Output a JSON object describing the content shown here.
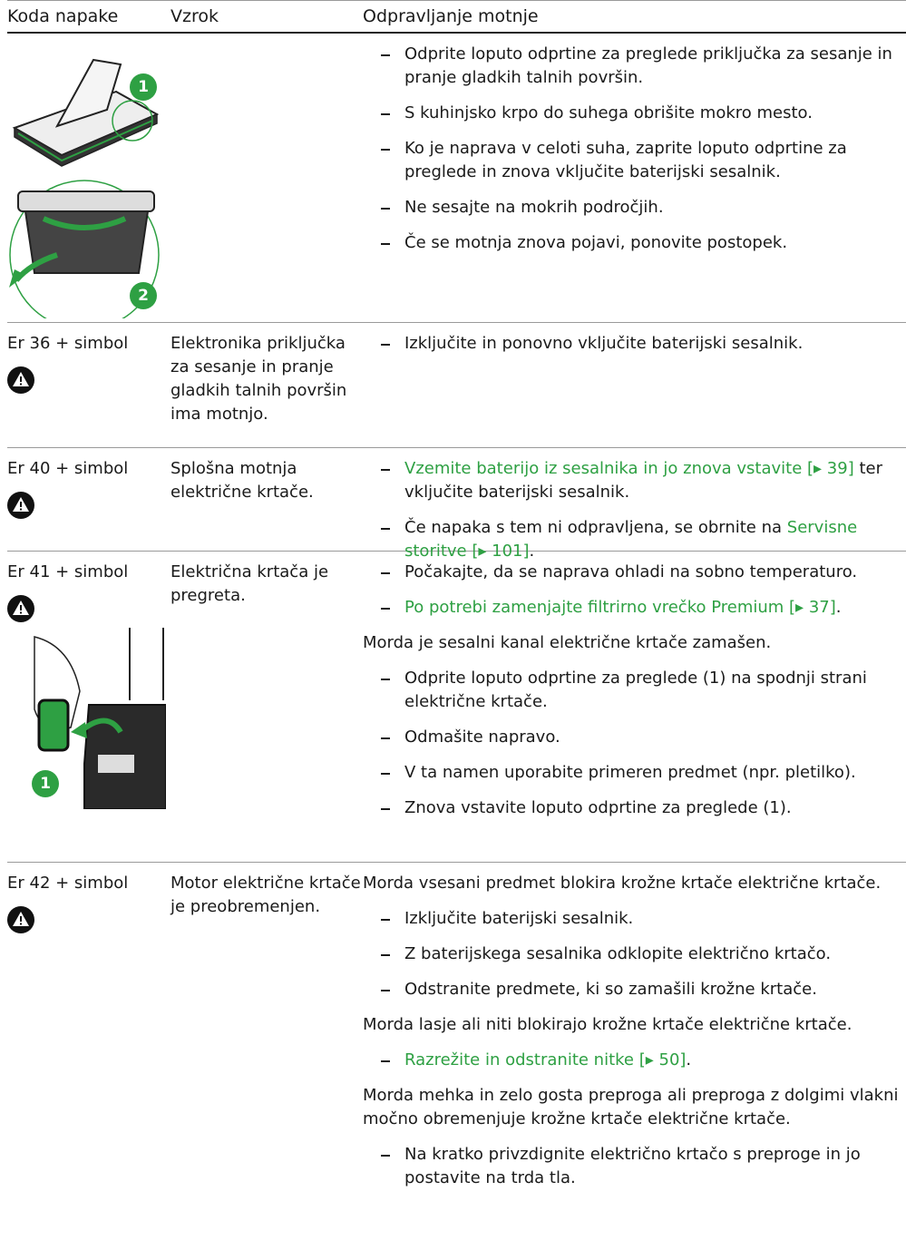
{
  "table": {
    "header": [
      "Koda napake",
      "Vzrok",
      "Odpravljanje motnje"
    ],
    "rows": [
      {
        "image_callouts": [
          "1",
          "2"
        ],
        "items": [
          {
            "kind": "bullet",
            "parts": [
              {
                "text": "Odprite loputo odprtine za preglede priključka za sesanje in pranje gladkih talnih površin."
              }
            ]
          },
          {
            "kind": "bullet",
            "parts": [
              {
                "text": "S kuhinjsko krpo do suhega obrišite mokro mesto."
              }
            ]
          },
          {
            "kind": "bullet",
            "parts": [
              {
                "text": "Ko je naprava v celoti suha, zaprite loputo odprtine za preglede in znova vključite baterijski sesalnik."
              }
            ]
          },
          {
            "kind": "bullet",
            "parts": [
              {
                "text": "Ne sesajte na mokrih področjih."
              }
            ]
          },
          {
            "kind": "bullet",
            "parts": [
              {
                "text": "Če se motnja znova pojavi, ponovite postopek."
              }
            ]
          }
        ]
      },
      {
        "code": "Er 36 + simbol",
        "warning": true,
        "cause": "Elektronika priključka za sesanje in pranje gladkih talnih površin ima motnjo.",
        "items": [
          {
            "kind": "bullet",
            "parts": [
              {
                "text": "Izključite in ponovno vključite baterijski sesalnik."
              }
            ]
          }
        ]
      },
      {
        "code": "Er 40 + simbol",
        "warning": true,
        "cause": "Splošna motnja električne krtače.",
        "items": [
          {
            "kind": "bullet",
            "parts": [
              {
                "text": "Vzemite baterijo iz sesalnika in jo znova vstavite [▸ 39]",
                "link": true
              },
              {
                "text": " ter vključite baterijski sesalnik."
              }
            ]
          },
          {
            "kind": "bullet",
            "parts": [
              {
                "text": "Če napaka s tem ni odpravljena, se obrnite na "
              },
              {
                "text": "Servisne storitve [▸ 101]",
                "link": true
              },
              {
                "text": "."
              }
            ]
          }
        ]
      },
      {
        "code": "Er 41 + simbol",
        "warning": true,
        "image_callouts": [
          "1"
        ],
        "cause": "Električna krtača je pregreta.",
        "items": [
          {
            "kind": "bullet",
            "parts": [
              {
                "text": "Počakajte, da se naprava ohladi na sobno temperaturo."
              }
            ]
          },
          {
            "kind": "bullet",
            "parts": [
              {
                "text": "Po potrebi zamenjajte filtrirno vrečko Premium [▸ 37]",
                "link": true
              },
              {
                "text": "."
              }
            ]
          },
          {
            "kind": "para",
            "parts": [
              {
                "text": "Morda je sesalni kanal električne krtače zamašen."
              }
            ]
          },
          {
            "kind": "bullet",
            "parts": [
              {
                "text": "Odprite loputo odprtine za preglede (1) na spodnji strani električne krtače."
              }
            ]
          },
          {
            "kind": "bullet",
            "parts": [
              {
                "text": "Odmašite napravo."
              }
            ]
          },
          {
            "kind": "bullet",
            "parts": [
              {
                "text": "V ta namen uporabite primeren predmet (npr. pletilko)."
              }
            ]
          },
          {
            "kind": "bullet",
            "parts": [
              {
                "text": "Znova vstavite loputo odprtine za preglede (1)."
              }
            ]
          }
        ]
      },
      {
        "code": "Er 42 + simbol",
        "warning": true,
        "cause": "Motor električne krtače je preobremenjen.",
        "items": [
          {
            "kind": "para",
            "parts": [
              {
                "text": "Morda vsesani predmet blokira krožne krtače električne krtače."
              }
            ]
          },
          {
            "kind": "bullet",
            "parts": [
              {
                "text": "Izključite baterijski sesalnik."
              }
            ]
          },
          {
            "kind": "bullet",
            "parts": [
              {
                "text": "Z baterijskega sesalnika odklopite električno krtačo."
              }
            ]
          },
          {
            "kind": "bullet",
            "parts": [
              {
                "text": "Odstranite predmete, ki so zamašili krožne krtače."
              }
            ]
          },
          {
            "kind": "para",
            "parts": [
              {
                "text": "Morda lasje ali niti blokirajo krožne krtače električne krtače."
              }
            ]
          },
          {
            "kind": "bullet",
            "parts": [
              {
                "text": "Razrežite in odstranite nitke [▸ 50]",
                "link": true
              },
              {
                "text": "."
              }
            ]
          },
          {
            "kind": "para",
            "parts": [
              {
                "text": "Morda mehka in zelo gosta preproga ali preproga z dolgimi vlakni močno obremenjuje krožne krtače električne krtače."
              }
            ]
          },
          {
            "kind": "bullet",
            "parts": [
              {
                "text": "Na kratko privzdignite električno krtačo s preproge in jo postavite na trda tla."
              }
            ]
          }
        ]
      }
    ]
  }
}
